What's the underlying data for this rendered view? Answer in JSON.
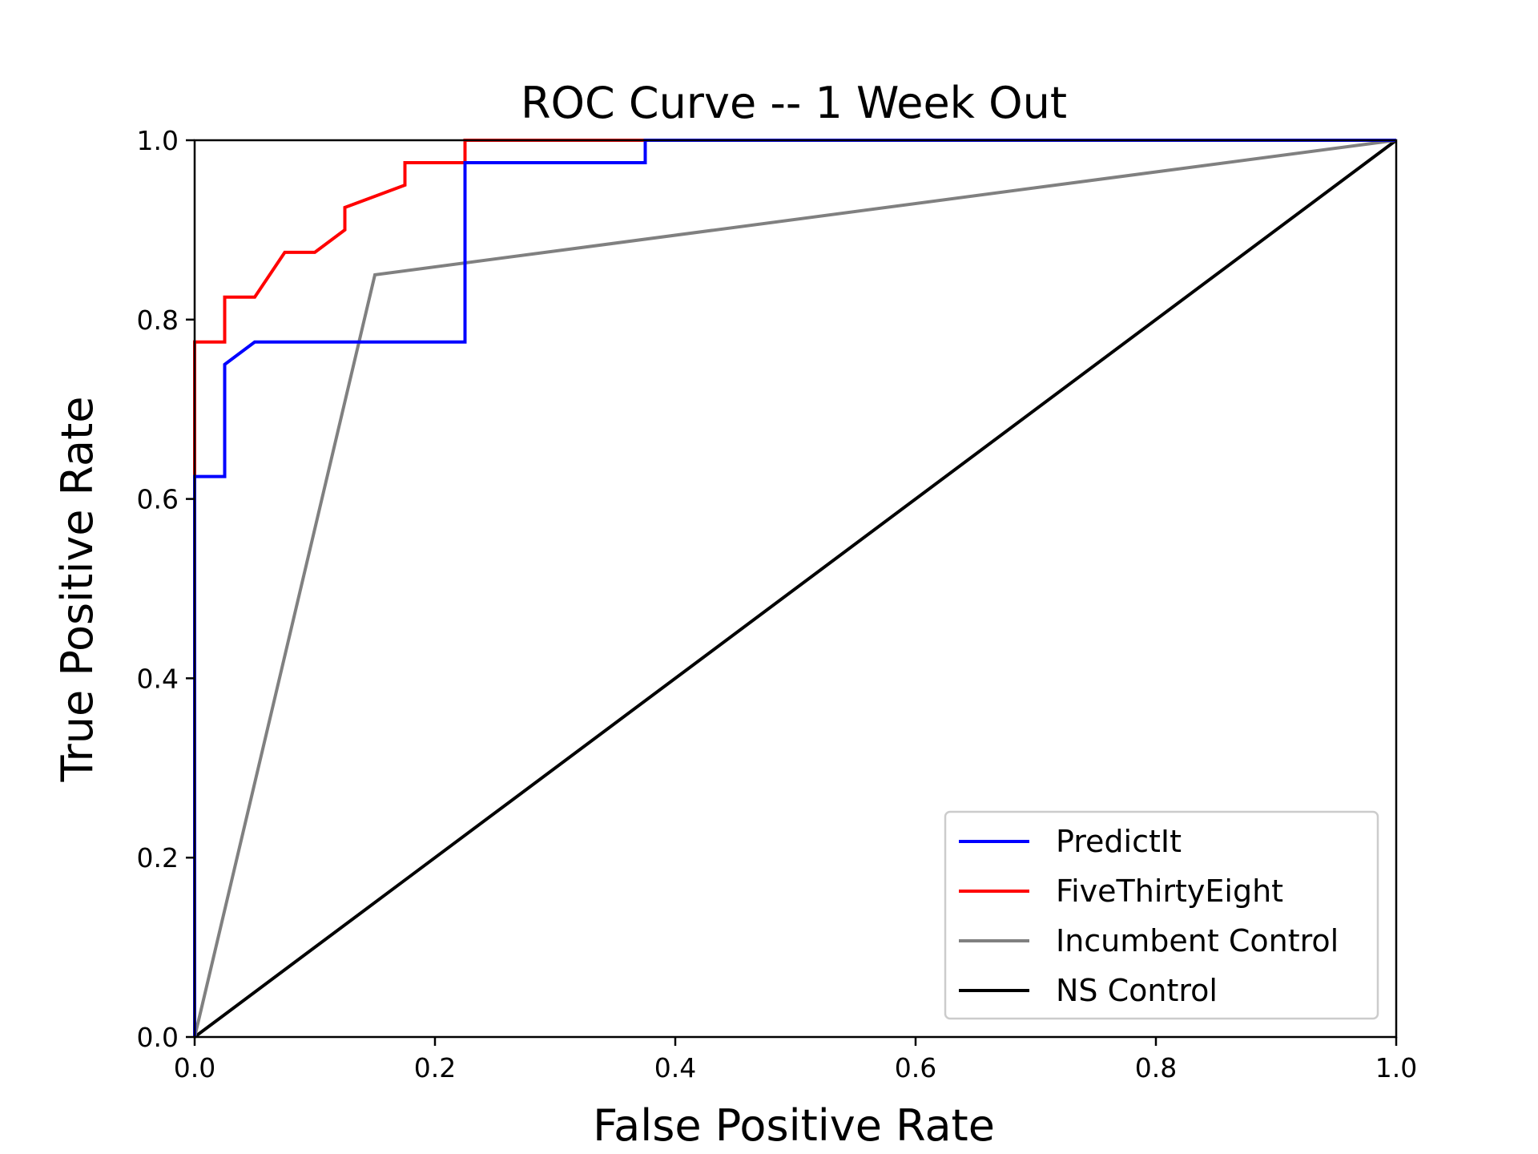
{
  "chart_data": {
    "type": "line",
    "title": "ROC Curve -- 1 Week Out",
    "xlabel": "False Positive Rate",
    "ylabel": "True Positive Rate",
    "xlim": [
      0.0,
      1.0
    ],
    "ylim": [
      0.0,
      1.0
    ],
    "xticks": [
      "0.0",
      "0.2",
      "0.4",
      "0.6",
      "0.8",
      "1.0"
    ],
    "yticks": [
      "0.0",
      "0.2",
      "0.4",
      "0.6",
      "0.8",
      "1.0"
    ],
    "grid": false,
    "legend_position": "lower-right",
    "series": [
      {
        "name": "PredictIt",
        "color": "#0000ff",
        "x": [
          0.0,
          0.0,
          0.025,
          0.025,
          0.05,
          0.225,
          0.225,
          0.375,
          0.375,
          1.0
        ],
        "y": [
          0.0,
          0.625,
          0.625,
          0.75,
          0.775,
          0.775,
          0.975,
          0.975,
          1.0,
          1.0
        ]
      },
      {
        "name": "FiveThirtyEight",
        "color": "#ff0000",
        "x": [
          0.0,
          0.0,
          0.025,
          0.025,
          0.05,
          0.075,
          0.1,
          0.125,
          0.125,
          0.175,
          0.175,
          0.225,
          0.225,
          1.0
        ],
        "y": [
          0.0,
          0.775,
          0.775,
          0.825,
          0.825,
          0.875,
          0.875,
          0.9,
          0.925,
          0.95,
          0.975,
          0.975,
          1.0,
          1.0
        ]
      },
      {
        "name": "Incumbent Control",
        "color": "#808080",
        "x": [
          0.0,
          0.15,
          1.0
        ],
        "y": [
          0.0,
          0.85,
          1.0
        ]
      },
      {
        "name": "NS Control",
        "color": "#000000",
        "x": [
          0.0,
          1.0
        ],
        "y": [
          0.0,
          1.0
        ]
      }
    ]
  }
}
